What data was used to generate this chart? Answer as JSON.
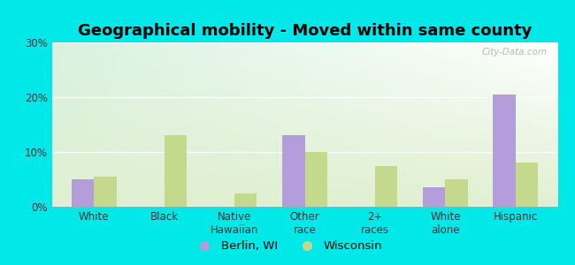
{
  "title": "Geographical mobility - Moved within same county",
  "categories": [
    "White",
    "Black",
    "Native\nHawaiian",
    "Other\nrace",
    "2+\nraces",
    "White\nalone",
    "Hispanic"
  ],
  "berlin_values": [
    5.0,
    0.0,
    0.0,
    13.0,
    0.0,
    3.5,
    20.5
  ],
  "wisconsin_values": [
    5.5,
    13.0,
    2.5,
    10.0,
    7.5,
    5.0,
    8.0
  ],
  "berlin_color": "#b39ddb",
  "wisconsin_color": "#c5d98d",
  "background_color": "#00e8e8",
  "ylim": [
    0,
    30
  ],
  "yticks": [
    0,
    10,
    20,
    30
  ],
  "ytick_labels": [
    "0%",
    "10%",
    "20%",
    "30%"
  ],
  "legend_labels": [
    "Berlin, WI",
    "Wisconsin"
  ],
  "bar_width": 0.32,
  "title_fontsize": 13,
  "tick_fontsize": 8.5,
  "legend_fontsize": 9.5
}
